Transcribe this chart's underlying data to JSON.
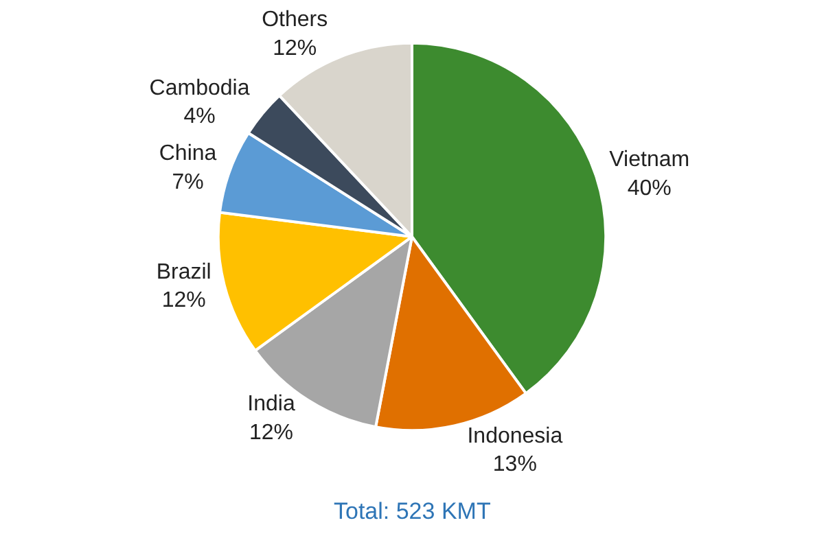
{
  "chart_data": {
    "type": "pie",
    "categories": [
      "Vietnam",
      "Indonesia",
      "India",
      "Brazil",
      "China",
      "Cambodia",
      "Others"
    ],
    "values": [
      40,
      13,
      12,
      12,
      7,
      4,
      12
    ],
    "value_labels": [
      "40%",
      "13%",
      "12%",
      "12%",
      "7%",
      "4%",
      "12%"
    ],
    "colors": [
      "#3d8b2f",
      "#e07000",
      "#a6a6a6",
      "#ffc000",
      "#5b9bd5",
      "#3c4a5c",
      "#d9d5cc"
    ],
    "annotations": [
      "Total: 523 KMT"
    ],
    "legend": false
  }
}
